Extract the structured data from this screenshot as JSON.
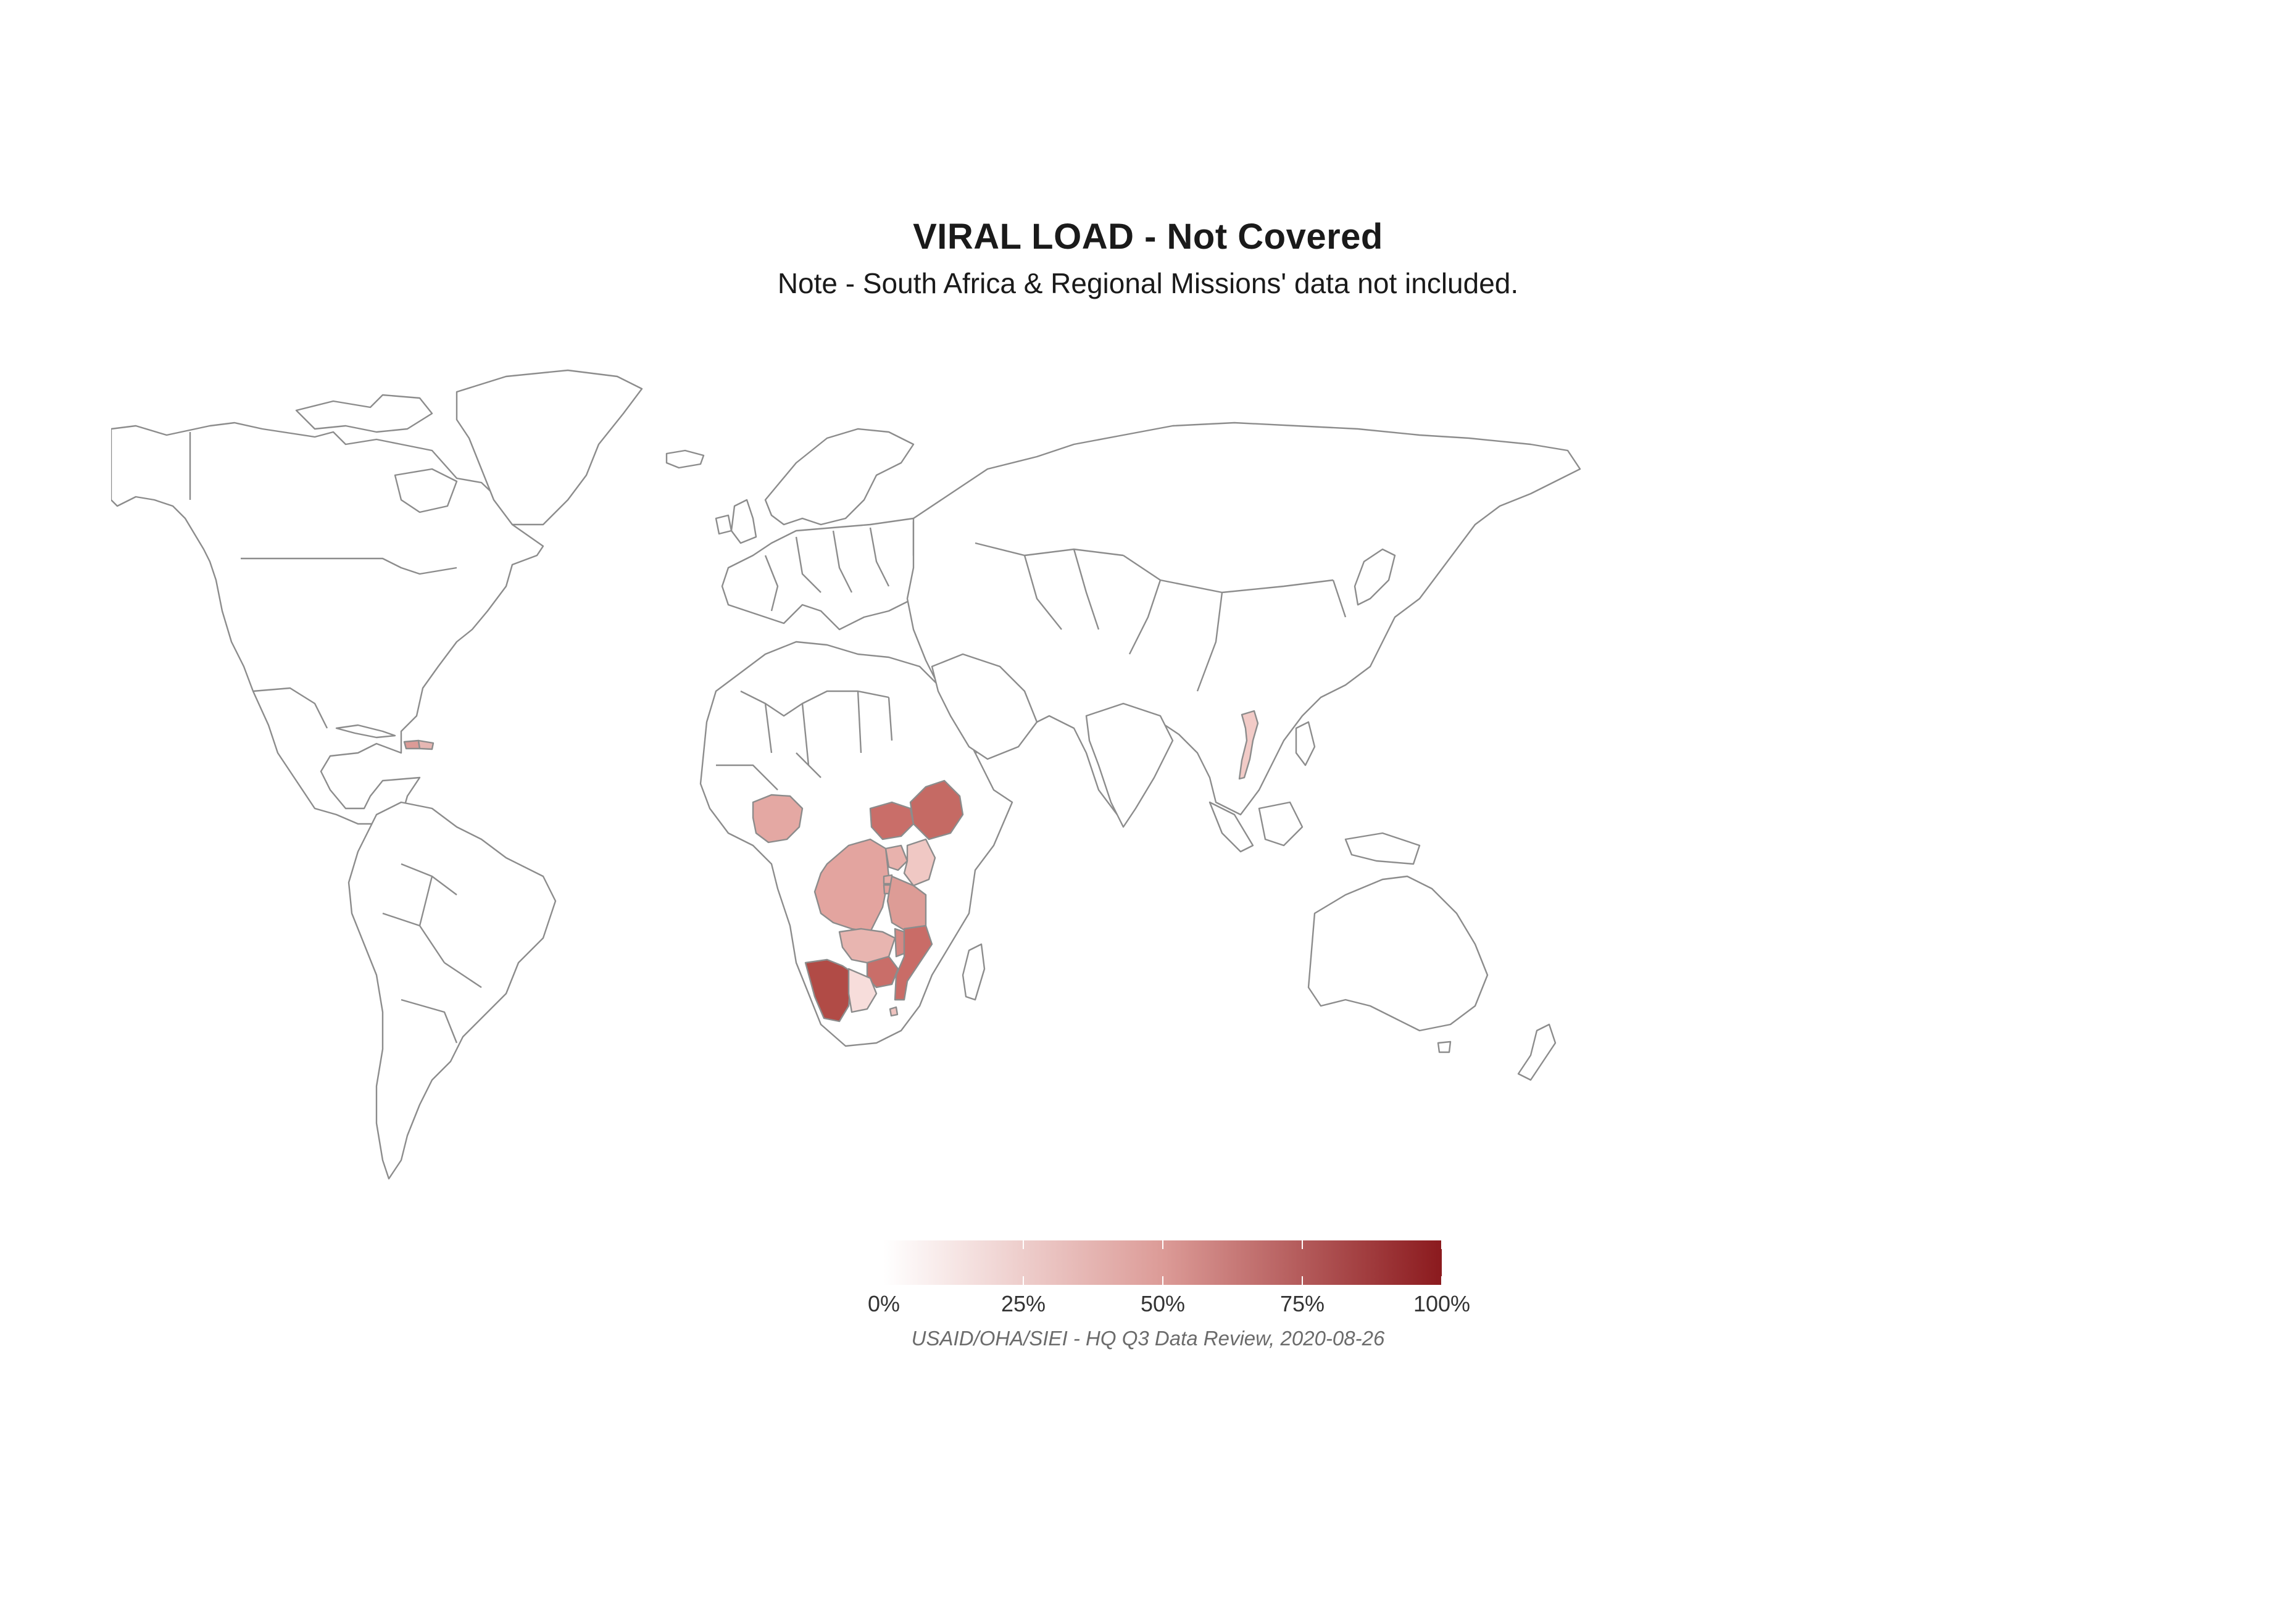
{
  "title": "VIRAL LOAD - Not Covered",
  "subtitle": "Note - South Africa & Regional Missions' data not included.",
  "caption": "USAID/OHA/SIEI - HQ Q3 Data Review, 2020-08-26",
  "colors": {
    "scale_low": "#ffffff",
    "scale_high": "#8b1a1e",
    "border": "#8c8c8c",
    "land": "#ffffff"
  },
  "legend": {
    "ticks": [
      "0%",
      "25%",
      "50%",
      "75%",
      "100%"
    ],
    "tick_values": [
      0,
      0.25,
      0.5,
      0.75,
      1.0
    ]
  },
  "chart_data": {
    "type": "choropleth",
    "value_unit": "share not covered (0–1)",
    "legend_range": [
      0,
      1
    ],
    "regions": [
      {
        "name": "Namibia",
        "value": 0.88
      },
      {
        "name": "Ethiopia",
        "value": 0.62
      },
      {
        "name": "South Sudan",
        "value": 0.64
      },
      {
        "name": "Mozambique",
        "value": 0.58
      },
      {
        "name": "Zimbabwe",
        "value": 0.6
      },
      {
        "name": "Malawi",
        "value": 0.5
      },
      {
        "name": "Tanzania",
        "value": 0.42
      },
      {
        "name": "Democratic Republic of the Congo",
        "value": 0.38
      },
      {
        "name": "Nigeria",
        "value": 0.36
      },
      {
        "name": "Zambia",
        "value": 0.3
      },
      {
        "name": "Uganda",
        "value": 0.36
      },
      {
        "name": "Kenya",
        "value": 0.25
      },
      {
        "name": "Rwanda",
        "value": 0.3
      },
      {
        "name": "Burundi",
        "value": 0.32
      },
      {
        "name": "Botswana",
        "value": 0.12
      },
      {
        "name": "Eswatini",
        "value": 0.22
      },
      {
        "name": "Vietnam",
        "value": 0.22
      },
      {
        "name": "Haiti",
        "value": 0.4
      },
      {
        "name": "Dominican Republic",
        "value": 0.3
      }
    ]
  }
}
